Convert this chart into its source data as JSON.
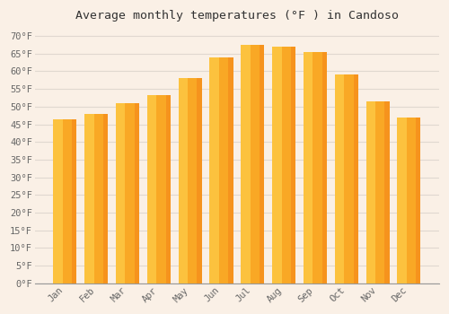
{
  "title": "Average monthly temperatures (°F ) in Candoso",
  "months": [
    "Jan",
    "Feb",
    "Mar",
    "Apr",
    "May",
    "Jun",
    "Jul",
    "Aug",
    "Sep",
    "Oct",
    "Nov",
    "Dec"
  ],
  "values": [
    46.4,
    48.0,
    51.0,
    53.2,
    58.0,
    64.0,
    67.5,
    67.0,
    65.5,
    59.0,
    51.5,
    47.0
  ],
  "bar_color_main": "#F9A825",
  "bar_color_light": "#FFD54F",
  "bar_color_dark": "#F57F17",
  "ylim": [
    0,
    72
  ],
  "yticks": [
    0,
    5,
    10,
    15,
    20,
    25,
    30,
    35,
    40,
    45,
    50,
    55,
    60,
    65,
    70
  ],
  "ylabel_suffix": "°F",
  "bg_color": "#FAF0E6",
  "plot_bg_color": "#FAF0E6",
  "grid_color": "#E0D8D0",
  "title_fontsize": 9.5,
  "tick_fontsize": 7.5,
  "tick_color": "#666666",
  "title_color": "#333333"
}
